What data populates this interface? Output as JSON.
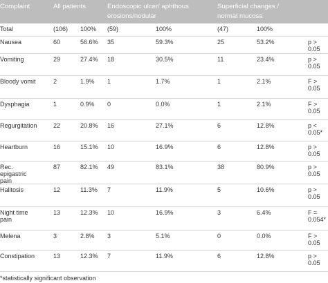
{
  "header": {
    "complaint": "Complaint",
    "all": "All patients",
    "endo1": "Endoscopic ulcer/ aphthous",
    "endo2": "erosions/nodular",
    "sup1": "Superficial changes /",
    "sup2": "normal mucosa"
  },
  "rows": [
    {
      "c": [
        "Total"
      ],
      "a_n": "(106)",
      "a_p": "100%",
      "e_n": "(59)",
      "e_p": "100%",
      "s_n": "(47)",
      "s_p": "100%",
      "p": []
    },
    {
      "c": [
        "Nausea"
      ],
      "a_n": "60",
      "a_p": "56.6%",
      "e_n": "35",
      "e_p": "59.3%",
      "s_n": "25",
      "s_p": "53.2%",
      "p": [
        "p >",
        "0.05"
      ]
    },
    {
      "c": [
        "Vomiting"
      ],
      "a_n": "29",
      "a_p": "27.4%",
      "e_n": "18",
      "e_p": "30.5%",
      "s_n": "11",
      "s_p": "23.4%",
      "p": [
        "p >",
        "0.05"
      ]
    },
    {
      "c": [
        "Bloody vomit"
      ],
      "a_n": "2",
      "a_p": "1.9%",
      "e_n": "1",
      "e_p": "1.7%",
      "s_n": "1",
      "s_p": "2.1%",
      "p": [
        "F >",
        "0.05"
      ]
    },
    {
      "c": [
        "Dysphagia"
      ],
      "a_n": "1",
      "a_p": "0.9%",
      "e_n": "0",
      "e_p": "0.0%",
      "s_n": "1",
      "s_p": "2.1%",
      "p": [
        "F >",
        "0.05"
      ]
    },
    {
      "c": [
        "Regurgitation"
      ],
      "a_n": "22",
      "a_p": "20.8%",
      "e_n": "16",
      "e_p": "27.1%",
      "s_n": "6",
      "s_p": "12.8%",
      "p": [
        "p <",
        "0.05*"
      ]
    },
    {
      "c": [
        "Heartburn"
      ],
      "a_n": "16",
      "a_p": "15.1%",
      "e_n": "10",
      "e_p": "16.9%",
      "s_n": "6",
      "s_p": "12.8%",
      "p": [
        "p >",
        "0.05"
      ]
    },
    {
      "c": [
        "Rec.",
        "epigastric",
        "pain"
      ],
      "a_n": "87",
      "a_p": "82.1%",
      "e_n": "49",
      "e_p": "83.1%",
      "s_n": "38",
      "s_p": "80.9%",
      "p": [
        "p >",
        "0.05"
      ]
    },
    {
      "c": [
        "Halitosis"
      ],
      "a_n": "12",
      "a_p": "11.3%",
      "e_n": "7",
      "e_p": "11.9%",
      "s_n": "5",
      "s_p": "10.6%",
      "p": [
        "p >",
        "0.05"
      ]
    },
    {
      "c": [
        "Night time",
        "pain"
      ],
      "a_n": "13",
      "a_p": "12.3%",
      "e_n": "10",
      "e_p": "16.9%",
      "s_n": "3",
      "s_p": "6.4%",
      "p": [
        "F =",
        "0.054*"
      ]
    },
    {
      "c": [
        "Melena"
      ],
      "a_n": "3",
      "a_p": "2.8%",
      "e_n": "3",
      "e_p": "5.1%",
      "s_n": "0",
      "s_p": "0.0%",
      "p": [
        "F >",
        "0.05"
      ]
    },
    {
      "c": [
        "Constipation"
      ],
      "a_n": "13",
      "a_p": "12.3%",
      "e_n": "7",
      "e_p": "11.9%",
      "s_n": "6",
      "s_p": "12.8%",
      "p": [
        "p >",
        "0.05"
      ]
    }
  ],
  "footnote": "*statistically significant observation"
}
